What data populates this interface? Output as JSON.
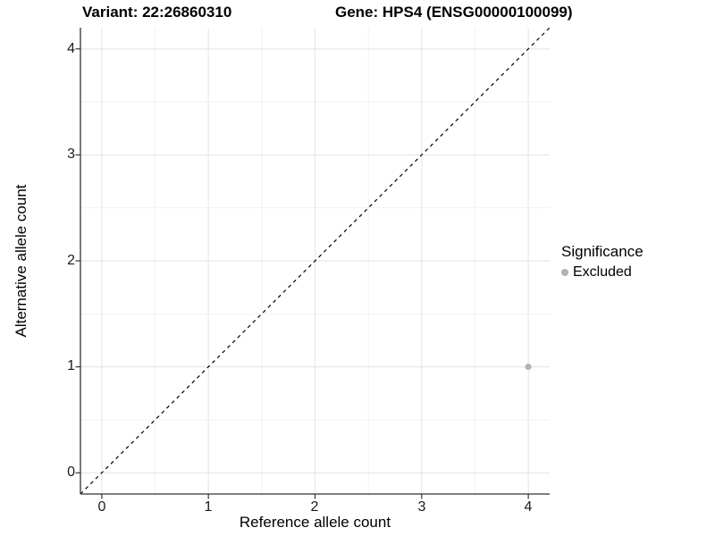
{
  "header": {
    "variant_title": "Variant: 22:26860310",
    "gene_title": "Gene: HPS4 (ENSG00000100099)"
  },
  "axes": {
    "x": {
      "label": "Reference allele count",
      "ticks": [
        "0",
        "1",
        "2",
        "3",
        "4"
      ]
    },
    "y": {
      "label": "Alternative allele count",
      "ticks": [
        "0",
        "1",
        "2",
        "3",
        "4"
      ]
    }
  },
  "legend": {
    "title": "Significance",
    "items": [
      {
        "label": "Excluded",
        "color": "#b3b3b3"
      }
    ]
  },
  "colors": {
    "background": "#ffffff",
    "grid_major": "#e8e8e8",
    "grid_minor": "#f2f2f2",
    "axis_line": "#333333",
    "tick_mark": "#333333",
    "point": "#b3b3b3",
    "reference_line": "#000000"
  },
  "chart_data": {
    "type": "scatter",
    "title": "Variant: 22:26860310 — Gene: HPS4 (ENSG00000100099)",
    "xlabel": "Reference allele count",
    "ylabel": "Alternative allele count",
    "x_ticks": [
      0,
      1,
      2,
      3,
      4
    ],
    "y_ticks": [
      0,
      1,
      2,
      3,
      4
    ],
    "xlim": [
      -0.2,
      4.2
    ],
    "ylim": [
      -0.2,
      4.2
    ],
    "grid": true,
    "legend_position": "right",
    "series": [
      {
        "name": "Excluded",
        "color": "#b3b3b3",
        "points": [
          [
            4,
            1
          ]
        ]
      }
    ],
    "annotations": [
      {
        "type": "reference-line",
        "equation": "y=x",
        "style": "dashed",
        "color": "#000000"
      }
    ]
  }
}
